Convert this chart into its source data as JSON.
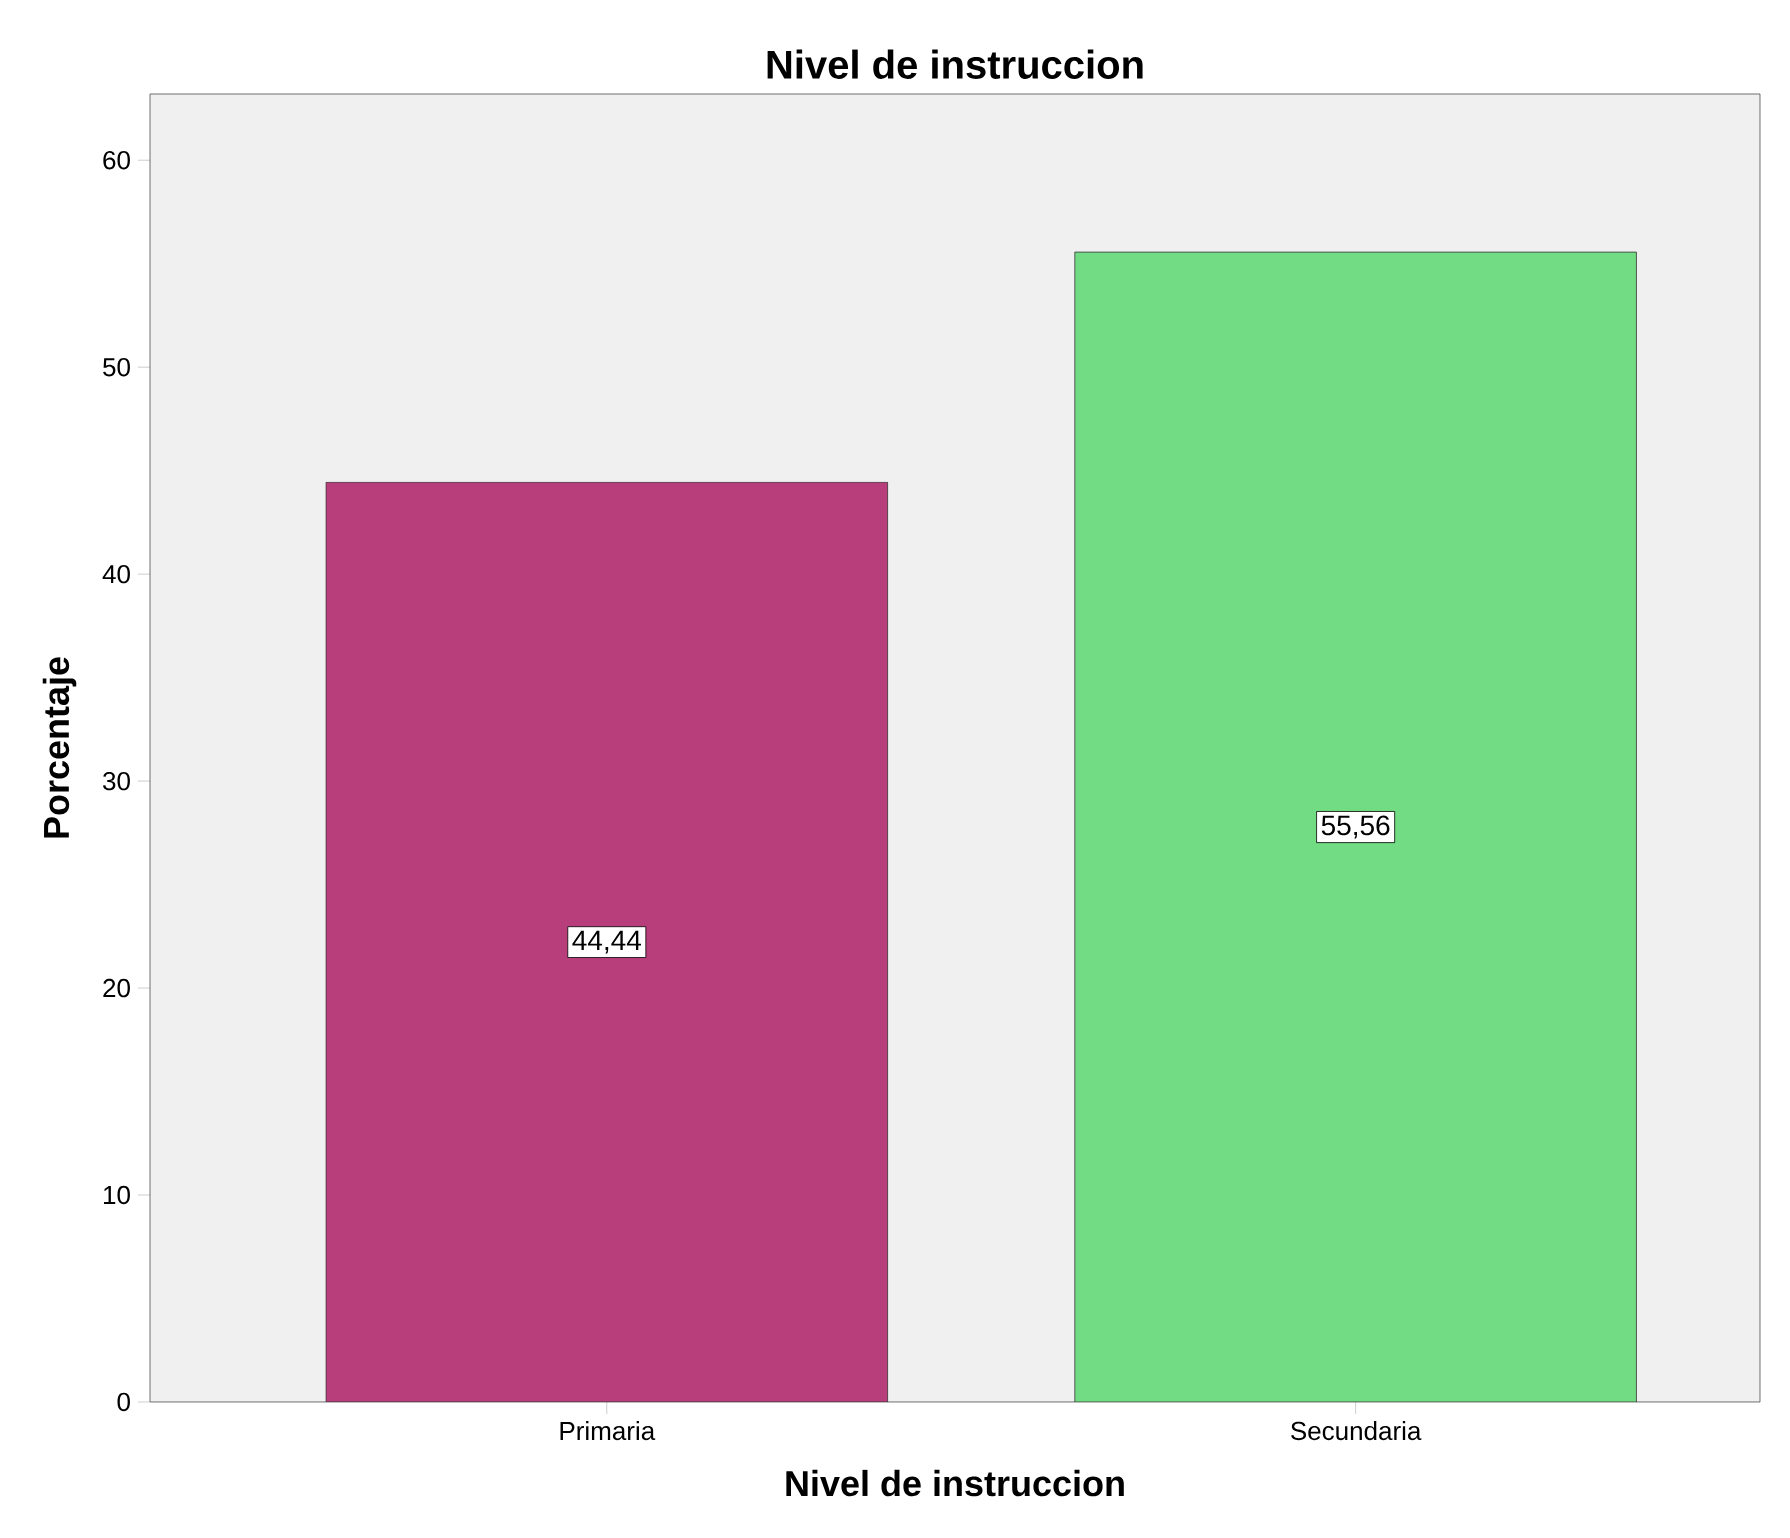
{
  "chart_data": {
    "type": "bar",
    "title": "Nivel de instruccion",
    "xlabel": "Nivel de instruccion",
    "ylabel": "Porcentaje",
    "categories": [
      "Primaria",
      "Secundaria"
    ],
    "values": [
      44.44,
      55.56
    ],
    "value_labels": [
      "44,44",
      "55,56"
    ],
    "colors": [
      "#b83e7b",
      "#72dc84"
    ],
    "ylim": [
      0,
      63.2
    ],
    "yticks": [
      0,
      10,
      20,
      30,
      40,
      50,
      60
    ],
    "grid": false
  }
}
